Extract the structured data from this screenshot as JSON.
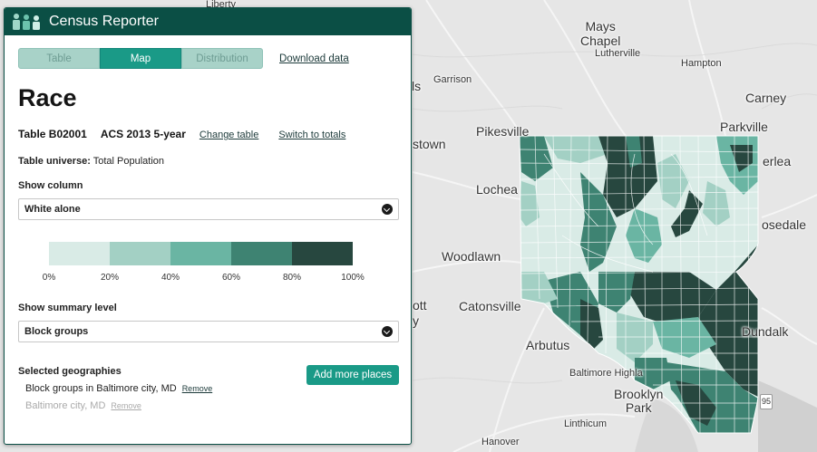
{
  "app": {
    "brand": "Census Reporter"
  },
  "tabs": [
    {
      "label": "Table",
      "active": false
    },
    {
      "label": "Map",
      "active": true
    },
    {
      "label": "Distribution",
      "active": false
    }
  ],
  "download_label": "Download data",
  "page_title": "Race",
  "table_meta": {
    "table_id": "Table B02001",
    "release": "ACS 2013 5-year",
    "change_table": "Change table",
    "switch_totals": "Switch to totals"
  },
  "universe": {
    "label": "Table universe:",
    "value": "Total Population"
  },
  "column": {
    "label": "Show column",
    "selected": "White alone"
  },
  "legend": {
    "colors": [
      "#d9ebe6",
      "#a3d0c4",
      "#6ab5a3",
      "#3e8372",
      "#27473f"
    ],
    "ticks": [
      "0%",
      "20%",
      "40%",
      "60%",
      "80%",
      "100%"
    ]
  },
  "summary_level": {
    "label": "Show summary level",
    "selected": "Block groups"
  },
  "geographies": {
    "label": "Selected geographies",
    "add_button": "Add more places",
    "items": [
      {
        "name": "Block groups in Baltimore city, MD",
        "remove": "Remove",
        "dim": false
      },
      {
        "name": "Baltimore city, MD",
        "remove": "Remove",
        "dim": true
      }
    ]
  },
  "map": {
    "places": [
      {
        "name": "Liberty"
      },
      {
        "name": "Mays\nChapel"
      },
      {
        "name": "Lutherville"
      },
      {
        "name": "Hampton"
      },
      {
        "name": "ls"
      },
      {
        "name": "Garrison"
      },
      {
        "name": "Carney"
      },
      {
        "name": "Pikesville"
      },
      {
        "name": "Parkville"
      },
      {
        "name": "stown"
      },
      {
        "name": "erlea"
      },
      {
        "name": "Lochea"
      },
      {
        "name": "osedale"
      },
      {
        "name": "Woodlawn"
      },
      {
        "name": "ott"
      },
      {
        "name": "Catonsville"
      },
      {
        "name": "y"
      },
      {
        "name": "Dundalk"
      },
      {
        "name": "Arbutus"
      },
      {
        "name": "Baltimore Highla"
      },
      {
        "name": "Brooklyn\nPark"
      },
      {
        "name": "95"
      },
      {
        "name": "Linthicum"
      },
      {
        "name": "Hanover"
      }
    ]
  }
}
